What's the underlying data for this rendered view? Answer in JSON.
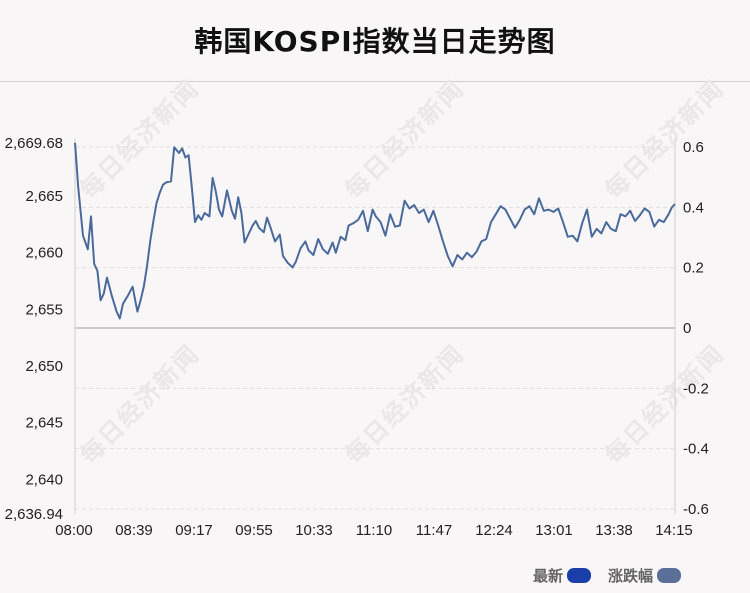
{
  "title": "韩国KOSPI指数当日走势图",
  "watermark": "每日经济新闻",
  "legend": [
    {
      "label": "最新",
      "color": "#1b3fa8"
    },
    {
      "label": "涨跌幅",
      "color": "#5b6f99"
    }
  ],
  "chart_data": {
    "type": "line",
    "title": "韩国KOSPI指数当日走势图",
    "x_ticks": [
      "08:00",
      "08:39",
      "09:17",
      "09:55",
      "10:33",
      "11:10",
      "11:47",
      "12:24",
      "13:01",
      "13:38",
      "14:15"
    ],
    "y_left_ticks": [
      "2,669.68",
      "2,665",
      "2,660",
      "2,655",
      "2,650",
      "2,645",
      "2,640",
      "2,636.94"
    ],
    "y_left_values": [
      2669.68,
      2665,
      2660,
      2655,
      2650,
      2645,
      2640,
      2636.94
    ],
    "y_right_ticks": [
      "0.6",
      "0.4",
      "0.2",
      "0",
      "-0.2",
      "-0.4",
      "-0.6"
    ],
    "y_right_values": [
      0.6,
      0.4,
      0.2,
      0,
      -0.2,
      -0.4,
      -0.6
    ],
    "ylim": [
      2636.94,
      2669.68
    ],
    "xlim_minutes": [
      0,
      375
    ],
    "series": [
      {
        "color": "#4a6a9c",
        "x": [
          0,
          2,
          5,
          8,
          10,
          12,
          14,
          16,
          18,
          20,
          23,
          26,
          28,
          30,
          33,
          36,
          39,
          41,
          43,
          45,
          47,
          49,
          51,
          53,
          55,
          57,
          60,
          62,
          65,
          67,
          69,
          71,
          73,
          75,
          77,
          79,
          81,
          84,
          86,
          88,
          90,
          92,
          95,
          98,
          100,
          102,
          104,
          106,
          108,
          111,
          113,
          115,
          118,
          120,
          122,
          125,
          128,
          130,
          133,
          136,
          138,
          141,
          144,
          146,
          149,
          152,
          155,
          158,
          161,
          163,
          166,
          169,
          171,
          174,
          177,
          180,
          183,
          186,
          188,
          191,
          194,
          197,
          200,
          203,
          206,
          209,
          212,
          215,
          218,
          221,
          224,
          227,
          230,
          233,
          236,
          239,
          242,
          245,
          248,
          251,
          254,
          257,
          260,
          263,
          266,
          269,
          272,
          275,
          278,
          281,
          284,
          287,
          290,
          293,
          296,
          299,
          302,
          305,
          308,
          311,
          314,
          317,
          320,
          323,
          326,
          329,
          332,
          335,
          338,
          341,
          344,
          347,
          350,
          353,
          356,
          359,
          362,
          365,
          368,
          371,
          373,
          375
        ],
        "y": [
          2669.7,
          2665.8,
          2661.5,
          2660.3,
          2663.2,
          2659.0,
          2658.4,
          2655.8,
          2656.4,
          2657.8,
          2656.2,
          2654.8,
          2654.2,
          2655.5,
          2656.2,
          2657.0,
          2654.8,
          2655.8,
          2657.0,
          2658.8,
          2661.0,
          2662.8,
          2664.4,
          2665.3,
          2666.0,
          2666.2,
          2666.3,
          2669.3,
          2668.8,
          2669.2,
          2668.4,
          2668.6,
          2665.8,
          2662.7,
          2663.3,
          2662.9,
          2663.5,
          2663.2,
          2666.6,
          2665.4,
          2663.8,
          2663.2,
          2665.5,
          2663.7,
          2663.0,
          2664.9,
          2663.5,
          2660.9,
          2661.5,
          2662.4,
          2662.8,
          2662.2,
          2661.8,
          2663.1,
          2662.3,
          2661.0,
          2661.6,
          2659.7,
          2659.1,
          2658.7,
          2659.2,
          2660.4,
          2661.0,
          2660.2,
          2659.8,
          2661.2,
          2660.3,
          2659.9,
          2660.9,
          2660.0,
          2661.4,
          2661.1,
          2662.4,
          2662.6,
          2662.9,
          2663.7,
          2661.9,
          2663.8,
          2663.2,
          2662.7,
          2661.5,
          2663.4,
          2662.3,
          2662.4,
          2664.6,
          2663.9,
          2664.2,
          2663.5,
          2663.8,
          2662.7,
          2663.7,
          2662.4,
          2661.0,
          2659.7,
          2658.8,
          2659.8,
          2659.4,
          2660.0,
          2659.6,
          2660.1,
          2661.0,
          2661.2,
          2662.7,
          2663.4,
          2664.1,
          2663.8,
          2663.0,
          2662.2,
          2662.9,
          2663.8,
          2664.1,
          2663.4,
          2664.8,
          2663.7,
          2663.8,
          2663.6,
          2663.9,
          2662.7,
          2661.4,
          2661.5,
          2661.0,
          2662.6,
          2663.8,
          2661.4,
          2662.1,
          2661.7,
          2662.7,
          2662.1,
          2661.9,
          2663.4,
          2663.2,
          2663.7,
          2662.8,
          2663.3,
          2663.9,
          2663.6,
          2662.3,
          2662.9,
          2662.7,
          2663.4,
          2664.0,
          2664.3
        ]
      }
    ],
    "grid": true,
    "legend_position": "bottom-right"
  }
}
